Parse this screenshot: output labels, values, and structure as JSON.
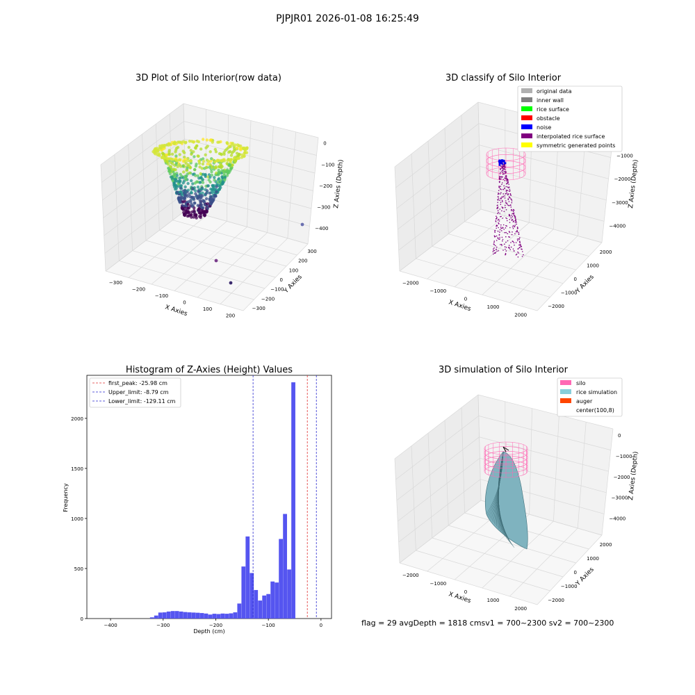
{
  "figure_title": "PJPJR01 2026-01-08 16:25:49",
  "colors": {
    "pane_left": "#ececec",
    "pane_right": "#f2f2f2",
    "pane_floor": "#f7f7f7",
    "grid": "#d8d8d8",
    "hist_bar": "#5050f0",
    "first_peak_line": "#e03030",
    "limit_line": "#2a2ad0",
    "silo_pink": "#ff69b4",
    "rice_sim": "#87cedb",
    "auger": "#ff4500",
    "noise": "#0000ee",
    "interp_purple": "#800080"
  },
  "chart_data": [
    {
      "type": "scatter",
      "title": "3D Plot of Silo Interior(row data)",
      "xlabel": "X Axies",
      "ylabel": "Y Axies",
      "zlabel": "Z Axies (Depth)",
      "xticks": [
        "−300",
        "−200",
        "−100",
        "0",
        "100",
        "200"
      ],
      "yticks": [
        "300",
        "200",
        "100",
        "0",
        "−100",
        "−200",
        "−300"
      ],
      "zticks": [
        "0",
        "−100",
        "−200",
        "−300",
        "−400"
      ],
      "xlim": [
        -300,
        250
      ],
      "ylim": [
        -300,
        300
      ],
      "zlim": [
        -430,
        0
      ],
      "colormap": "viridis",
      "outliers": [
        {
          "x": 80,
          "y": 280,
          "z": -400
        },
        {
          "x": 60,
          "y": 40,
          "z": -430
        },
        {
          "x": 200,
          "y": -120,
          "z": -430
        }
      ]
    },
    {
      "type": "scatter",
      "title": "3D classify of Silo Interior",
      "xlabel": "X Axies",
      "ylabel": "Y Axies",
      "zlabel": "Z Axies (Depth)",
      "xticks": [
        "−2000",
        "−1000",
        "0",
        "1000",
        "2000"
      ],
      "yticks": [
        "2000",
        "1000",
        "0",
        "−1000",
        "−2000"
      ],
      "zticks": [
        "−1000",
        "−2000",
        "−3000",
        "−4000"
      ],
      "legend": [
        {
          "label": "original data",
          "color": "#b0b0b0"
        },
        {
          "label": "inner wall",
          "color": "#808080"
        },
        {
          "label": "rice surface",
          "color": "#00ff00"
        },
        {
          "label": "obstacle",
          "color": "#ff0000"
        },
        {
          "label": "noise",
          "color": "#0000ff"
        },
        {
          "label": "interpolated rice surface",
          "color": "#800080"
        },
        {
          "label": "symmetric generated points",
          "color": "#ffff00"
        }
      ],
      "legend_loc": "upper right"
    },
    {
      "type": "bar",
      "title": "Histogram of Z-Axies (Height) Values",
      "xlabel": "Depth (cm)",
      "ylabel": "Frequency",
      "xlim": [
        -445,
        20
      ],
      "ylim": [
        0,
        2430
      ],
      "xticks": [
        {
          "v": -400,
          "l": "−400"
        },
        {
          "v": -300,
          "l": "−300"
        },
        {
          "v": -200,
          "l": "−200"
        },
        {
          "v": -100,
          "l": "−100"
        },
        {
          "v": 0,
          "l": "0"
        }
      ],
      "yticks": [
        0,
        500,
        1000,
        1500,
        2000
      ],
      "bin_start": -325,
      "bin_width": 7.9,
      "values": [
        12,
        30,
        60,
        62,
        70,
        75,
        75,
        70,
        65,
        62,
        60,
        58,
        55,
        50,
        40,
        48,
        45,
        50,
        48,
        52,
        62,
        150,
        520,
        820,
        455,
        285,
        180,
        230,
        245,
        370,
        360,
        795,
        1045,
        490,
        2360
      ],
      "vlines": [
        {
          "label": "first_peak: -25.98 cm",
          "x": -25.98,
          "color": "#e03030"
        },
        {
          "label": "Upper_limit: -8.79 cm",
          "x": -8.79,
          "color": "#2a2ad0"
        },
        {
          "label": "Lower_limit: -129.11 cm",
          "x": -129.11,
          "color": "#2a2ad0"
        }
      ],
      "legend_loc": "upper left"
    },
    {
      "type": "area",
      "title": "3D simulation of Silo Interior",
      "xlabel": "X Axies",
      "ylabel": "Y Axies",
      "zlabel": "Z Axies (Depth)",
      "xticks": [
        "−2000",
        "−1000",
        "0",
        "1000",
        "2000"
      ],
      "yticks": [
        "2000",
        "1000",
        "0",
        "−1000",
        "−2000"
      ],
      "zticks": [
        "0",
        "−1000",
        "−2000",
        "−3000",
        "−4000"
      ],
      "legend": [
        {
          "label": "silo",
          "color": "#ff69b4"
        },
        {
          "label": "rice simulation",
          "color": "#87cedb"
        },
        {
          "label": "auger",
          "color": "#ff4500"
        },
        {
          "label": "center(100,8)",
          "color": "#ffffff"
        }
      ],
      "legend_loc": "upper right",
      "annotation": "flag = 29  avgDepth = 1818 cmsv1 = 700~2300  sv2 = 700~2300"
    }
  ]
}
